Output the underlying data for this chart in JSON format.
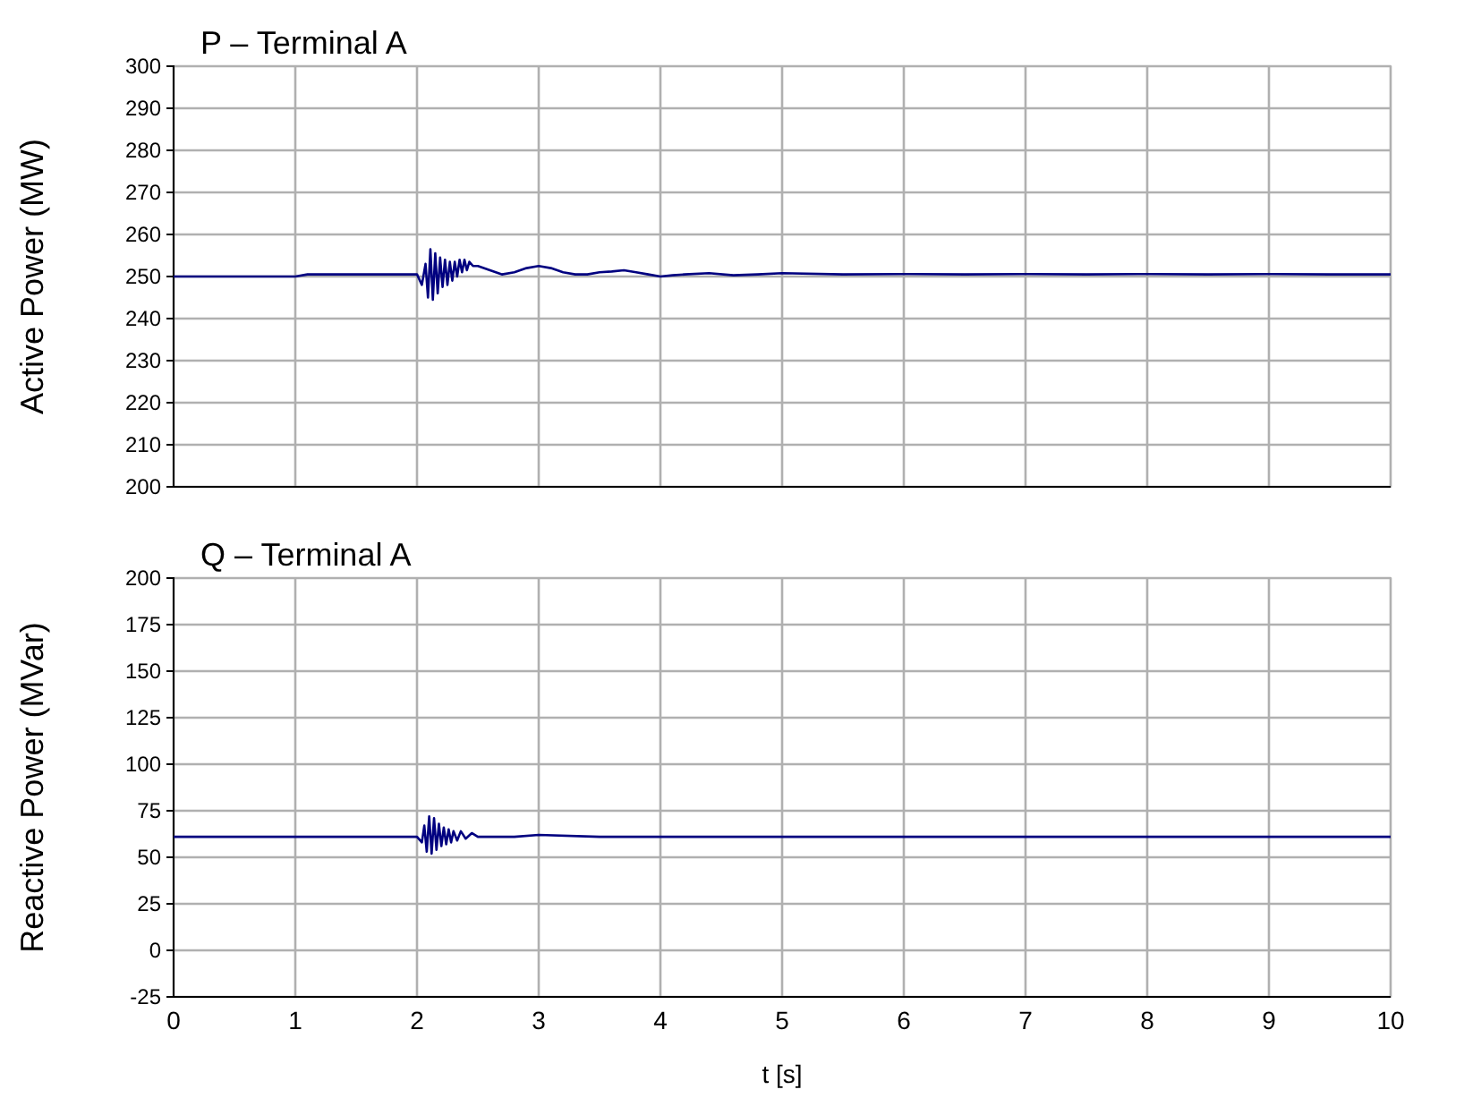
{
  "chart_data": [
    {
      "type": "line",
      "title": "P – Terminal A",
      "ylabel": "Active Power (MW)",
      "xlim": [
        0,
        10
      ],
      "xticks": [
        0,
        1,
        2,
        3,
        4,
        5,
        6,
        7,
        8,
        9,
        10
      ],
      "ylim": [
        200,
        300
      ],
      "yticks": [
        200,
        210,
        220,
        230,
        240,
        250,
        260,
        270,
        280,
        290,
        300
      ],
      "grid": true,
      "tick_labels": "y",
      "marker": "none",
      "line_style": "solid",
      "series": [
        {
          "color": "#000080",
          "x": [
            0,
            1.0,
            1.1,
            2.0,
            2.04,
            2.07,
            2.09,
            2.11,
            2.13,
            2.15,
            2.17,
            2.19,
            2.21,
            2.23,
            2.25,
            2.27,
            2.29,
            2.31,
            2.33,
            2.35,
            2.37,
            2.39,
            2.41,
            2.43,
            2.46,
            2.5,
            2.6,
            2.7,
            2.8,
            2.9,
            3.0,
            3.1,
            3.2,
            3.3,
            3.4,
            3.5,
            3.6,
            3.7,
            3.8,
            3.9,
            4.0,
            4.1,
            4.2,
            4.4,
            4.6,
            4.8,
            5.0,
            5.5,
            6.0,
            6.5,
            7.0,
            7.5,
            8.0,
            8.5,
            9.0,
            9.5,
            10
          ],
          "values": [
            250,
            250,
            250.5,
            250.5,
            248,
            253,
            245,
            256.5,
            244.5,
            255.5,
            246,
            254.5,
            247.5,
            254,
            248,
            253.5,
            249,
            253.5,
            250,
            254,
            251,
            254,
            251.5,
            253.5,
            252.5,
            252.5,
            251.5,
            250.5,
            251,
            252,
            252.5,
            252,
            251,
            250.5,
            250.5,
            251,
            251.2,
            251.5,
            251,
            250.5,
            250,
            250.3,
            250.5,
            250.8,
            250.3,
            250.5,
            250.8,
            250.5,
            250.6,
            250.5,
            250.6,
            250.5,
            250.6,
            250.5,
            250.6,
            250.5,
            250.5
          ]
        }
      ]
    },
    {
      "type": "line",
      "title": "Q – Terminal A",
      "ylabel": "Reactive Power (MVar)",
      "xlabel": "t [s]",
      "xlim": [
        0,
        10
      ],
      "xticks": [
        0,
        1,
        2,
        3,
        4,
        5,
        6,
        7,
        8,
        9,
        10
      ],
      "ylim": [
        -25,
        200
      ],
      "yticks": [
        -25,
        0,
        25,
        50,
        75,
        100,
        125,
        150,
        175,
        200
      ],
      "grid": true,
      "marker": "none",
      "line_style": "solid",
      "series": [
        {
          "color": "#000080",
          "x": [
            0,
            2.0,
            2.04,
            2.06,
            2.08,
            2.1,
            2.12,
            2.14,
            2.16,
            2.18,
            2.2,
            2.22,
            2.24,
            2.26,
            2.28,
            2.3,
            2.33,
            2.36,
            2.4,
            2.45,
            2.5,
            2.6,
            2.8,
            3.0,
            3.5,
            4.0,
            5.0,
            6.0,
            7.0,
            8.0,
            9.0,
            10
          ],
          "values": [
            61,
            61,
            58,
            67,
            53,
            72,
            52,
            71,
            54,
            68,
            56,
            66,
            57,
            65,
            58,
            64,
            59,
            64,
            60,
            63,
            61,
            61,
            61,
            62,
            61,
            61,
            61,
            61,
            61,
            61,
            61,
            61
          ]
        }
      ]
    }
  ]
}
